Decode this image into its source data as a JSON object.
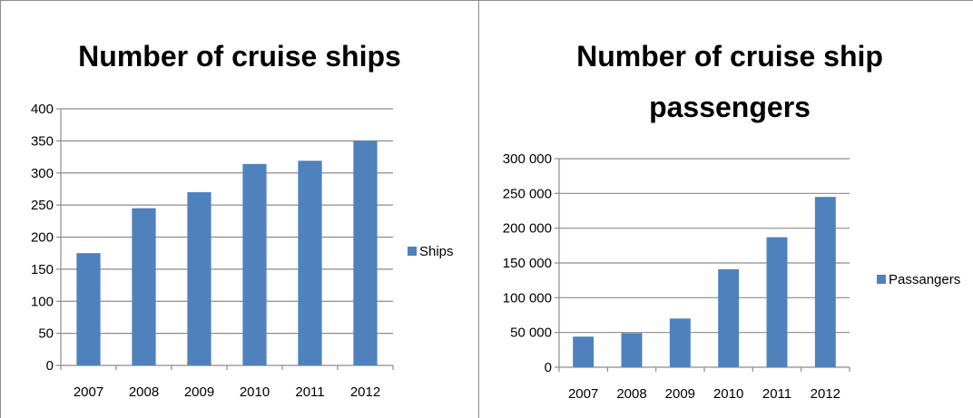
{
  "chart_data": [
    {
      "type": "bar",
      "title": "Number of cruise ships",
      "categories": [
        "2007",
        "2008",
        "2009",
        "2010",
        "2011",
        "2012"
      ],
      "series": [
        {
          "name": "Ships",
          "values": [
            175,
            245,
            270,
            314,
            319,
            350
          ],
          "color": "#4f81bd"
        }
      ],
      "ylim": [
        0,
        400
      ],
      "yticks": [
        0,
        50,
        100,
        150,
        200,
        250,
        300,
        350,
        400
      ],
      "ytick_labels": [
        "0",
        "50",
        "100",
        "150",
        "200",
        "250",
        "300",
        "350",
        "400"
      ],
      "grid": true,
      "legend": "right"
    },
    {
      "type": "bar",
      "title": "Number of cruise ship passengers",
      "title_lines": [
        "Number of cruise ship",
        "passengers"
      ],
      "categories": [
        "2007",
        "2008",
        "2009",
        "2010",
        "2011",
        "2012"
      ],
      "series": [
        {
          "name": "Passangers",
          "values": [
            44000,
            49000,
            70000,
            141000,
            187000,
            245000
          ],
          "color": "#4f81bd"
        }
      ],
      "ylim": [
        0,
        300000
      ],
      "yticks": [
        0,
        50000,
        100000,
        150000,
        200000,
        250000,
        300000
      ],
      "ytick_labels": [
        "0",
        "50 000",
        "100 000",
        "150 000",
        "200 000",
        "250 000",
        "300 000"
      ],
      "grid": true,
      "legend": "right"
    }
  ]
}
